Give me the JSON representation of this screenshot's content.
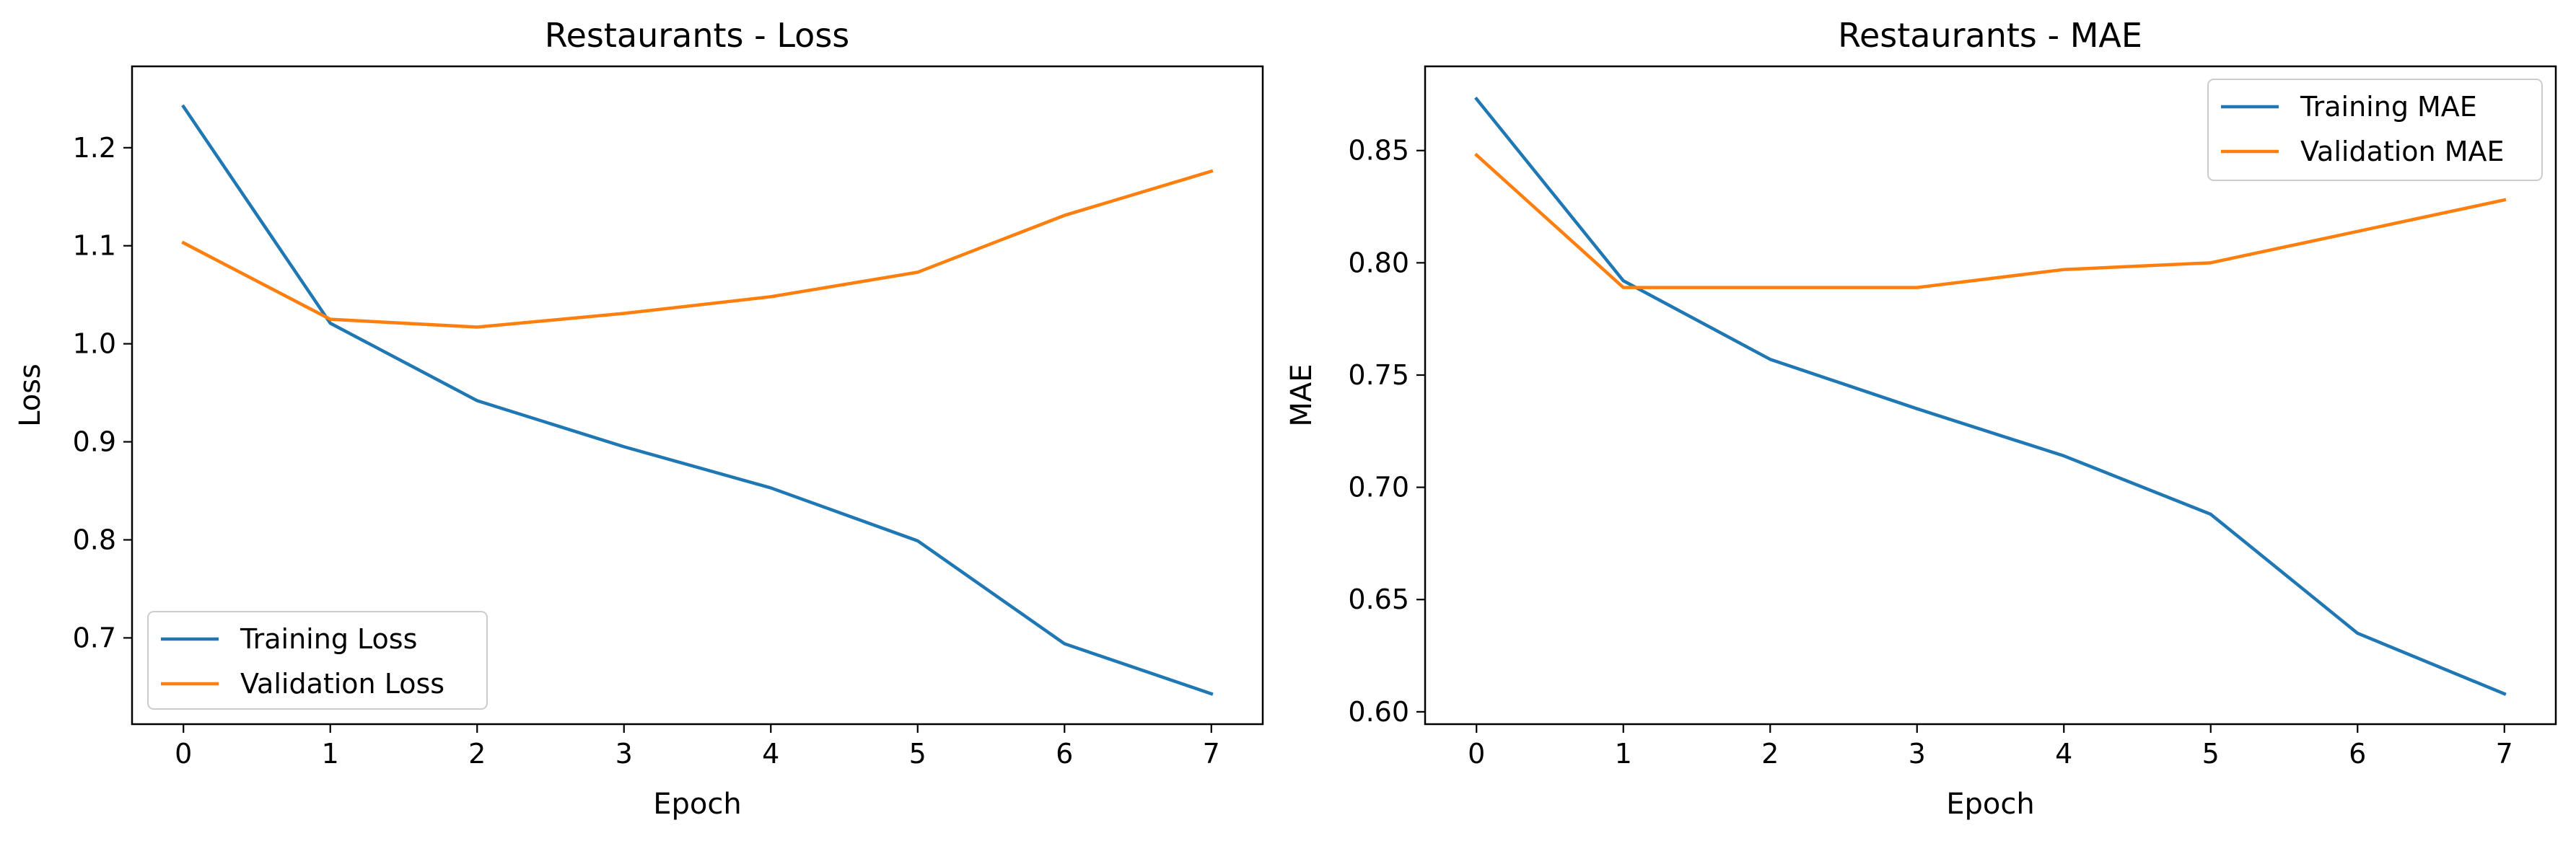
{
  "chart_data": [
    {
      "type": "line",
      "title": "Restaurants - Loss",
      "xlabel": "Epoch",
      "ylabel": "Loss",
      "x": [
        0,
        1,
        2,
        3,
        4,
        5,
        6,
        7
      ],
      "xlim": [
        -0.35,
        7.35
      ],
      "ylim": [
        0.612,
        1.283
      ],
      "xticks": [
        "0",
        "1",
        "2",
        "3",
        "4",
        "5",
        "6",
        "7"
      ],
      "yticks": [
        "0.7",
        "0.8",
        "0.9",
        "1.0",
        "1.1",
        "1.2"
      ],
      "ytick_values": [
        0.7,
        0.8,
        0.9,
        1.0,
        1.1,
        1.2
      ],
      "legend_position": "lower-left",
      "grid": false,
      "series": [
        {
          "name": "Training Loss",
          "color": "#1f77b4",
          "values": [
            1.242,
            1.021,
            0.942,
            0.895,
            0.853,
            0.799,
            0.694,
            0.643
          ]
        },
        {
          "name": "Validation Loss",
          "color": "#ff7f0e",
          "values": [
            1.103,
            1.025,
            1.017,
            1.031,
            1.048,
            1.073,
            1.131,
            1.176
          ]
        }
      ]
    },
    {
      "type": "line",
      "title": "Restaurants - MAE",
      "xlabel": "Epoch",
      "ylabel": "MAE",
      "x": [
        0,
        1,
        2,
        3,
        4,
        5,
        6,
        7
      ],
      "xlim": [
        -0.35,
        7.35
      ],
      "ylim": [
        0.5945,
        0.8875
      ],
      "xticks": [
        "0",
        "1",
        "2",
        "3",
        "4",
        "5",
        "6",
        "7"
      ],
      "yticks": [
        "0.60",
        "0.65",
        "0.70",
        "0.75",
        "0.80",
        "0.85"
      ],
      "ytick_values": [
        0.6,
        0.65,
        0.7,
        0.75,
        0.8,
        0.85
      ],
      "legend_position": "upper-right",
      "grid": false,
      "series": [
        {
          "name": "Training MAE",
          "color": "#1f77b4",
          "values": [
            0.873,
            0.792,
            0.757,
            0.735,
            0.714,
            0.688,
            0.635,
            0.608
          ]
        },
        {
          "name": "Validation MAE",
          "color": "#ff7f0e",
          "values": [
            0.848,
            0.789,
            0.789,
            0.789,
            0.797,
            0.8,
            0.814,
            0.828
          ]
        }
      ]
    }
  ]
}
